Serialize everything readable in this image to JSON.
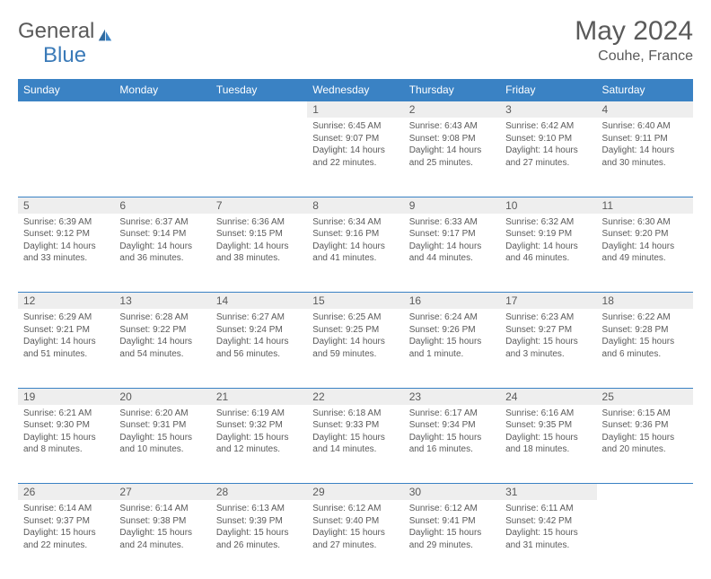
{
  "logo": {
    "text1": "General",
    "text2": "Blue"
  },
  "title": "May 2024",
  "location": "Couhe, France",
  "colors": {
    "header_bg": "#3a82c4",
    "header_text": "#ffffff",
    "daynum_bg": "#eeeeee",
    "text": "#5a5a5a",
    "rule": "#3a82c4",
    "logo_blue": "#3a7ab8",
    "page_bg": "#ffffff"
  },
  "weekdays": [
    "Sunday",
    "Monday",
    "Tuesday",
    "Wednesday",
    "Thursday",
    "Friday",
    "Saturday"
  ],
  "weeks": [
    [
      null,
      null,
      null,
      {
        "n": "1",
        "sunrise": "6:45 AM",
        "sunset": "9:07 PM",
        "daylight": "14 hours and 22 minutes."
      },
      {
        "n": "2",
        "sunrise": "6:43 AM",
        "sunset": "9:08 PM",
        "daylight": "14 hours and 25 minutes."
      },
      {
        "n": "3",
        "sunrise": "6:42 AM",
        "sunset": "9:10 PM",
        "daylight": "14 hours and 27 minutes."
      },
      {
        "n": "4",
        "sunrise": "6:40 AM",
        "sunset": "9:11 PM",
        "daylight": "14 hours and 30 minutes."
      }
    ],
    [
      {
        "n": "5",
        "sunrise": "6:39 AM",
        "sunset": "9:12 PM",
        "daylight": "14 hours and 33 minutes."
      },
      {
        "n": "6",
        "sunrise": "6:37 AM",
        "sunset": "9:14 PM",
        "daylight": "14 hours and 36 minutes."
      },
      {
        "n": "7",
        "sunrise": "6:36 AM",
        "sunset": "9:15 PM",
        "daylight": "14 hours and 38 minutes."
      },
      {
        "n": "8",
        "sunrise": "6:34 AM",
        "sunset": "9:16 PM",
        "daylight": "14 hours and 41 minutes."
      },
      {
        "n": "9",
        "sunrise": "6:33 AM",
        "sunset": "9:17 PM",
        "daylight": "14 hours and 44 minutes."
      },
      {
        "n": "10",
        "sunrise": "6:32 AM",
        "sunset": "9:19 PM",
        "daylight": "14 hours and 46 minutes."
      },
      {
        "n": "11",
        "sunrise": "6:30 AM",
        "sunset": "9:20 PM",
        "daylight": "14 hours and 49 minutes."
      }
    ],
    [
      {
        "n": "12",
        "sunrise": "6:29 AM",
        "sunset": "9:21 PM",
        "daylight": "14 hours and 51 minutes."
      },
      {
        "n": "13",
        "sunrise": "6:28 AM",
        "sunset": "9:22 PM",
        "daylight": "14 hours and 54 minutes."
      },
      {
        "n": "14",
        "sunrise": "6:27 AM",
        "sunset": "9:24 PM",
        "daylight": "14 hours and 56 minutes."
      },
      {
        "n": "15",
        "sunrise": "6:25 AM",
        "sunset": "9:25 PM",
        "daylight": "14 hours and 59 minutes."
      },
      {
        "n": "16",
        "sunrise": "6:24 AM",
        "sunset": "9:26 PM",
        "daylight": "15 hours and 1 minute."
      },
      {
        "n": "17",
        "sunrise": "6:23 AM",
        "sunset": "9:27 PM",
        "daylight": "15 hours and 3 minutes."
      },
      {
        "n": "18",
        "sunrise": "6:22 AM",
        "sunset": "9:28 PM",
        "daylight": "15 hours and 6 minutes."
      }
    ],
    [
      {
        "n": "19",
        "sunrise": "6:21 AM",
        "sunset": "9:30 PM",
        "daylight": "15 hours and 8 minutes."
      },
      {
        "n": "20",
        "sunrise": "6:20 AM",
        "sunset": "9:31 PM",
        "daylight": "15 hours and 10 minutes."
      },
      {
        "n": "21",
        "sunrise": "6:19 AM",
        "sunset": "9:32 PM",
        "daylight": "15 hours and 12 minutes."
      },
      {
        "n": "22",
        "sunrise": "6:18 AM",
        "sunset": "9:33 PM",
        "daylight": "15 hours and 14 minutes."
      },
      {
        "n": "23",
        "sunrise": "6:17 AM",
        "sunset": "9:34 PM",
        "daylight": "15 hours and 16 minutes."
      },
      {
        "n": "24",
        "sunrise": "6:16 AM",
        "sunset": "9:35 PM",
        "daylight": "15 hours and 18 minutes."
      },
      {
        "n": "25",
        "sunrise": "6:15 AM",
        "sunset": "9:36 PM",
        "daylight": "15 hours and 20 minutes."
      }
    ],
    [
      {
        "n": "26",
        "sunrise": "6:14 AM",
        "sunset": "9:37 PM",
        "daylight": "15 hours and 22 minutes."
      },
      {
        "n": "27",
        "sunrise": "6:14 AM",
        "sunset": "9:38 PM",
        "daylight": "15 hours and 24 minutes."
      },
      {
        "n": "28",
        "sunrise": "6:13 AM",
        "sunset": "9:39 PM",
        "daylight": "15 hours and 26 minutes."
      },
      {
        "n": "29",
        "sunrise": "6:12 AM",
        "sunset": "9:40 PM",
        "daylight": "15 hours and 27 minutes."
      },
      {
        "n": "30",
        "sunrise": "6:12 AM",
        "sunset": "9:41 PM",
        "daylight": "15 hours and 29 minutes."
      },
      {
        "n": "31",
        "sunrise": "6:11 AM",
        "sunset": "9:42 PM",
        "daylight": "15 hours and 31 minutes."
      },
      null
    ]
  ],
  "labels": {
    "sunrise": "Sunrise: ",
    "sunset": "Sunset: ",
    "daylight": "Daylight: "
  }
}
